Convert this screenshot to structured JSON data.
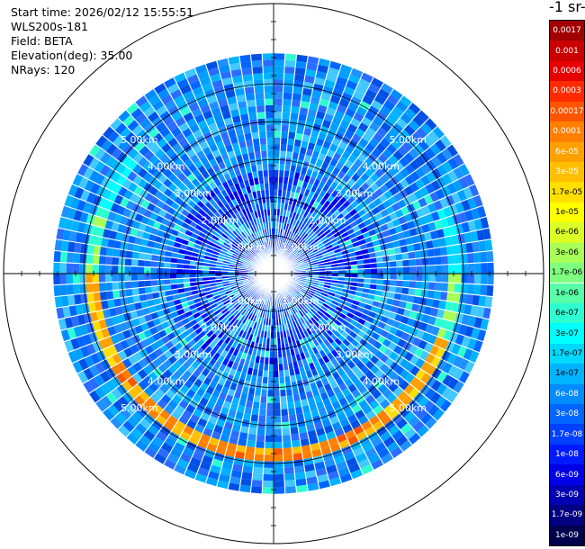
{
  "info": {
    "start_time": "Start time: 2026/02/12 15:55:51",
    "instrument": "WLS200s-181",
    "field": "Field: BETA",
    "elevation": "Elevation(deg): 35.00",
    "nrays": "NRays: 120"
  },
  "chart_data": {
    "type": "heatmap",
    "subtype": "polar PPI scan",
    "nrays": 120,
    "range_rings_km": [
      1,
      2,
      3,
      4,
      5
    ],
    "range_ring_labels": [
      "1.00km",
      "2.00km",
      "3.00km",
      "4.00km",
      "5.00km"
    ],
    "max_range_km": 5.8,
    "colorbar": {
      "title": "-1 sr-",
      "labels": [
        "0.0017",
        "0.001",
        "0.0006",
        "0.0003",
        "0.00017",
        "0.0001",
        "6e-05",
        "3e-05",
        "1.7e-05",
        "1e-05",
        "6e-06",
        "3e-06",
        "1.7e-06",
        "1e-06",
        "6e-07",
        "3e-07",
        "1.7e-07",
        "1e-07",
        "6e-08",
        "3e-08",
        "1.7e-08",
        "1e-08",
        "6e-09",
        "3e-09",
        "1.7e-09",
        "1e-09"
      ],
      "colors": [
        "#a00000",
        "#c80000",
        "#e60000",
        "#ff2a00",
        "#ff5500",
        "#ff8000",
        "#ffa000",
        "#ffbf00",
        "#ffdf00",
        "#ffff00",
        "#d9ff26",
        "#a8ff57",
        "#7fff80",
        "#57ffa8",
        "#2effd1",
        "#00ffff",
        "#00d9ff",
        "#00b3ff",
        "#008cff",
        "#0066ff",
        "#0040ff",
        "#001aff",
        "#0000e6",
        "#0000b3",
        "#000080",
        "#00004d"
      ]
    },
    "background_value": "1e-07",
    "enhanced_band": {
      "range_km": [
        4.6,
        5.0
      ],
      "azimuth_deg_clockwise_from_north": [
        70,
        310
      ],
      "peak_value": "3e-05"
    }
  }
}
